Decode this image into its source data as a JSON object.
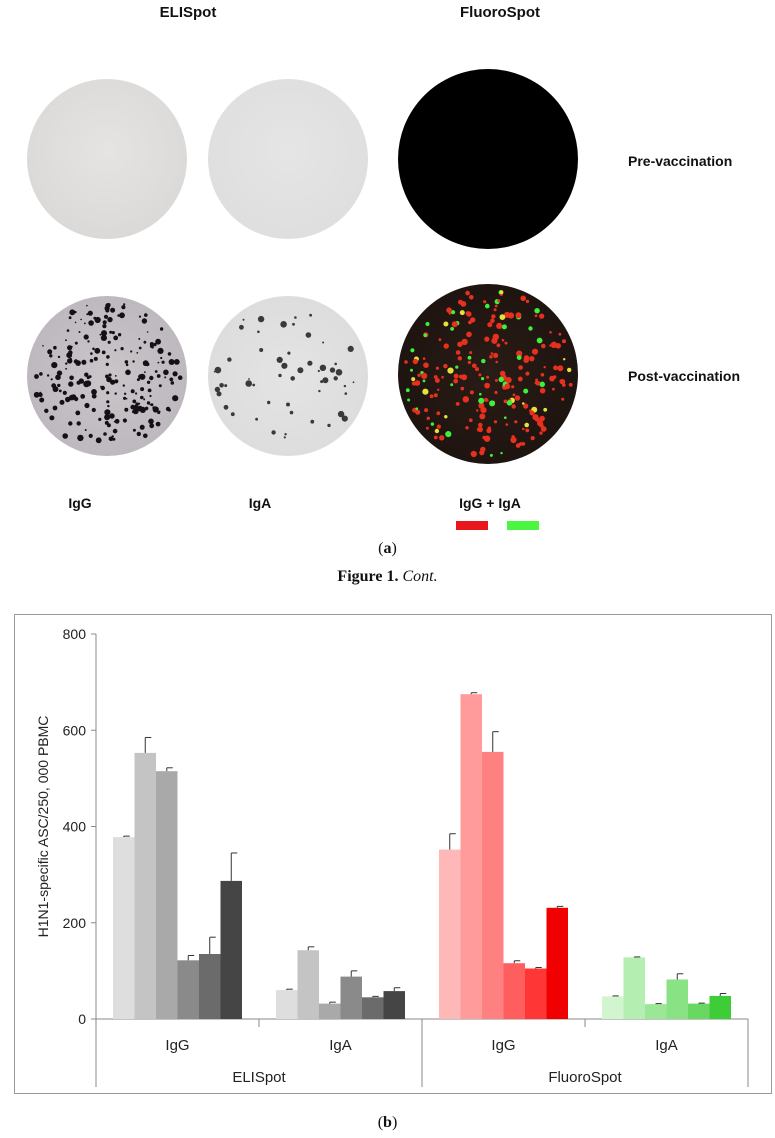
{
  "panel_a": {
    "headers": {
      "elispot": "ELISpot",
      "fluorospot": "FluoroSpot"
    },
    "rows": {
      "pre": "Pre-vaccination",
      "post": "Post-vaccination"
    },
    "columns": {
      "igg": "IgG",
      "iga": "IgA",
      "combo": "IgG + IgA"
    },
    "legend_colors": {
      "igg": "#e8171b",
      "iga": "#4cf53f"
    },
    "well_colors": {
      "elispot_pre": "#dcdad8",
      "fluorospot_pre": "#000000",
      "fluorospot_post_bg": "#2a1a14"
    },
    "panel_label_a": "(",
    "panel_letter_a": "a",
    "panel_label_a_end": ")",
    "figure_caption_bold": "Figure 1.",
    "figure_caption_italic": "Cont."
  },
  "panel_b_label": {
    "open": "(",
    "letter": "b",
    "close": ")"
  },
  "chart_data": {
    "type": "bar",
    "ylabel": "H1N1-specific ASC/250, 000 PBMC",
    "ylim": [
      0,
      800
    ],
    "yticks": [
      "0",
      "200",
      "400",
      "600",
      "800"
    ],
    "groups": [
      {
        "method": "ELISpot",
        "isotype": "IgG",
        "values": [
          378,
          553,
          515,
          122,
          135,
          287
        ],
        "errors": [
          2,
          32,
          7,
          10,
          35,
          58
        ],
        "colors": [
          "#dedede",
          "#c4c4c4",
          "#a9a9a9",
          "#8a8a8a",
          "#6b6b6b",
          "#454545"
        ]
      },
      {
        "method": "ELISpot",
        "isotype": "IgA",
        "values": [
          60,
          143,
          32,
          88,
          45,
          58
        ],
        "errors": [
          2,
          7,
          3,
          12,
          2,
          7
        ],
        "colors": [
          "#dedede",
          "#c4c4c4",
          "#a9a9a9",
          "#8a8a8a",
          "#6b6b6b",
          "#454545"
        ]
      },
      {
        "method": "FluoroSpot",
        "isotype": "IgG",
        "values": [
          352,
          675,
          555,
          116,
          105,
          231
        ],
        "errors": [
          33,
          3,
          42,
          5,
          2,
          3
        ],
        "colors": [
          "#ffb8b8",
          "#ff9b9b",
          "#ff8080",
          "#ff5e5e",
          "#ff3636",
          "#f00000"
        ]
      },
      {
        "method": "FluoroSpot",
        "isotype": "IgA",
        "values": [
          47,
          128,
          31,
          82,
          32,
          48
        ],
        "errors": [
          1,
          1,
          1,
          12,
          1,
          5
        ],
        "colors": [
          "#d2f5cf",
          "#b4eeb0",
          "#9ce797",
          "#89e283",
          "#69d862",
          "#3fcd37"
        ]
      }
    ],
    "isotype_labels": [
      "IgG",
      "IgA",
      "IgG",
      "IgA"
    ],
    "method_labels": [
      "ELISpot",
      "FluoroSpot"
    ],
    "grid": false,
    "legend": "none"
  }
}
